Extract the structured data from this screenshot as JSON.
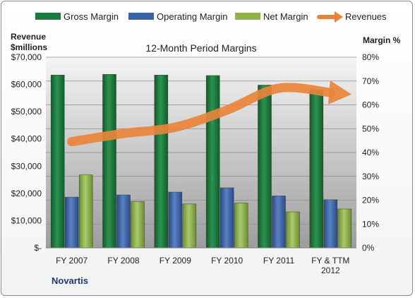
{
  "chart_data": {
    "type": "bar",
    "title": "12-Month Period Margins",
    "company": "Novartis",
    "left_axis_label_lines": [
      "Revenue",
      "$millions"
    ],
    "right_axis_label": "Margin %",
    "categories": [
      "FY 2007",
      "FY 2008",
      "FY 2009",
      "FY 2010",
      "FY 2011",
      "FY & TTM 2012"
    ],
    "left_ticks": [
      "$-",
      "$10,000",
      "$20,000",
      "$30,000",
      "$40,000",
      "$50,000",
      "$60,000",
      "$70,000"
    ],
    "right_ticks": [
      "0%",
      "10%",
      "20%",
      "30%",
      "40%",
      "50%",
      "60%",
      "70%",
      "80%"
    ],
    "ylim_left": [
      0,
      70000
    ],
    "ylim_right": [
      0,
      80
    ],
    "series": [
      {
        "name": "Gross Margin",
        "axis": "right",
        "color": "#1e7a3e",
        "values": [
          72.5,
          72.8,
          72.5,
          72.3,
          68.3,
          66.3
        ]
      },
      {
        "name": "Operating Margin",
        "axis": "right",
        "color": "#3a63a6",
        "values": [
          21.3,
          22.2,
          23.4,
          25.2,
          21.8,
          20.2
        ]
      },
      {
        "name": "Net Margin",
        "axis": "right",
        "color": "#8fb34c",
        "values": [
          30.6,
          19.4,
          18.4,
          18.8,
          15.1,
          16.3
        ]
      },
      {
        "name": "Revenues",
        "axis": "left",
        "type": "line",
        "color": "#e8843a",
        "values": [
          39000,
          42000,
          44300,
          50600,
          58600,
          57000
        ]
      }
    ],
    "legend_position": "top",
    "grid": "horizontal"
  }
}
